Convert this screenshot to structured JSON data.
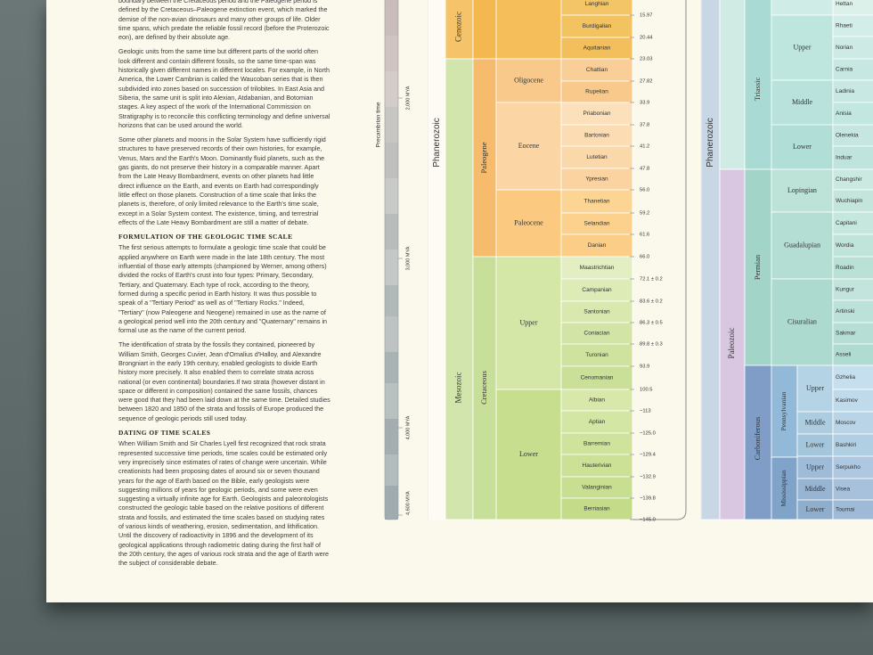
{
  "article": {
    "paragraphs_1": [
      "boundary between the Cretaceous period and the Paleogene period is defined by the Cretaceous–Paleogene extinction event, which marked the demise of the non-avian dinosaurs and many other groups of life. Older time spans, which predate the reliable fossil record (before the Proterozoic eon), are defined by their absolute age.",
      "Geologic units from the same time but different parts of the world often look different and contain different fossils, so the same time-span was historically given different names in different locales. For example, in North America, the Lower Cambrian is called the Waucoban series that is then subdivided into zones based on succession of trilobites. In East Asia and Siberia, the same unit is split into Alexian, Atdabanian, and Botomian stages. A key aspect of the work of the International Commission on Stratigraphy is to reconcile this conflicting terminology and define universal horizons that can be used around the world.",
      "Some other planets and moons in the Solar System have sufficiently rigid structures to have preserved records of their own histories, for example, Venus, Mars and the Earth's Moon. Dominantly fluid planets, such as the gas giants, do not preserve their history in a comparable manner. Apart from the Late Heavy Bombardment, events on other planets had little direct influence on the Earth, and events on Earth had correspondingly little effect on those planets. Construction of a time scale that links the planets is, therefore, of only limited relevance to the Earth's time scale, except in a Solar System context. The existence, timing, and terrestrial effects of the Late Heavy Bombardment are still a matter of debate."
    ],
    "heading_1": "FORMULATION OF THE GEOLOGIC TIME SCALE",
    "paragraphs_2": [
      "The first serious attempts to formulate a geologic time scale that could be applied anywhere on Earth were made in the late 18th century. The most influential of those early attempts (championed by Werner, among others) divided the rocks of Earth's crust into four types: Primary, Secondary, Tertiary, and Quaternary. Each type of rock, according to the theory, formed during a specific period in Earth history. It was thus possible to speak of a \"Tertiary Period\" as well as of \"Tertiary Rocks.\" Indeed, \"Tertiary\" (now Paleogene and Neogene) remained in use as the name of a geological period well into the 20th century and \"Quaternary\" remains in formal use as the name of the current period.",
      "The identification of strata by the fossils they contained, pioneered by William Smith, Georges Cuvier, Jean d'Omalius d'Halloy, and Alexandre Brongniart in the early 19th century, enabled geologists to divide Earth history more precisely. It also enabled them to correlate strata across national (or even continental) boundaries.If two strata (however distant in space or different in composition) contained the same fossils, chances were good that they had been laid down at the same time. Detailed studies between 1820 and 1850 of the strata and fossils of Europe produced the sequence of geologic periods still used today."
    ],
    "heading_2": "DATING OF TIME SCALES",
    "paragraphs_3": [
      "When William Smith and Sir Charles Lyell first recognized that rock strata represented successive time periods, time scales could be estimated only very imprecisely since estimates of rates of change were uncertain. While creationists had been proposing dates of around six or seven thousand years for the age of Earth based on the Bible, early geologists were suggesting millions of years for geologic periods, and some were even suggesting a virtually infinite age for Earth. Geologists and paleontologists constructed the geologic table based on the relative positions of different strata and fossils, and estimated the time scales based on studying rates of various kinds of weathering, erosion, sedimentation, and lithification. Until the discovery of radioactivity in 1896 and the development of its geological applications through radiometric dating during the first half of the 20th century, the ages of various rock strata and the age of Earth were the subject of considerable debate."
    ]
  },
  "precambrian": {
    "label": "Precambrian time",
    "ticks": [
      "2,000 MYA",
      "3,000 MYA",
      "4,000 MYA",
      "4,600 MYA"
    ]
  },
  "chart_left": {
    "eon": [
      {
        "label": "Phanerozoic",
        "color": "#fdfbf3"
      }
    ],
    "eras": [
      {
        "label": "Cenozoic",
        "color": "#f4c36a"
      },
      {
        "label": "Mesozoic",
        "color": "#d2e5ad"
      }
    ],
    "periods": [
      {
        "color": "#f5b850"
      },
      {
        "label": "Paleogene",
        "color": "#f6bb6c"
      },
      {
        "label": "Cretaceous",
        "color": "#c8df9a"
      }
    ],
    "epochs": [
      {
        "color": "#f6be5a"
      },
      {
        "label": "Oligocene",
        "color": "#f8c98b"
      },
      {
        "label": "Eocene",
        "color": "#fbd6a4"
      },
      {
        "label": "Paleocene",
        "color": "#fbca80"
      },
      {
        "label": "Upper",
        "color": "#d4e7a6"
      },
      {
        "label": "Lower",
        "color": "#c6de8e"
      }
    ],
    "stages": [
      {
        "label": "Langhian",
        "color": "#f3c566"
      },
      {
        "label": "Burdigalian",
        "color": "#f3c261"
      },
      {
        "label": "Aquitanian",
        "color": "#f3bf5c"
      },
      {
        "label": "Chattian",
        "color": "#f9cf97"
      },
      {
        "label": "Rupelian",
        "color": "#f9c98c"
      },
      {
        "label": "Priabonian",
        "color": "#fce0bb"
      },
      {
        "label": "Bartonian",
        "color": "#fcdcb2"
      },
      {
        "label": "Lutetian",
        "color": "#fbd8aa"
      },
      {
        "label": "Ypresian",
        "color": "#fbd3a0"
      },
      {
        "label": "Thanetian",
        "color": "#fcd595"
      },
      {
        "label": "Selandian",
        "color": "#fcd18d"
      },
      {
        "label": "Danian",
        "color": "#fbcd86"
      },
      {
        "label": "Maastrichtian",
        "color": "#e3eec2"
      },
      {
        "label": "Campanian",
        "color": "#ddebb7"
      },
      {
        "label": "Santonian",
        "color": "#d8e8ae"
      },
      {
        "label": "Coniacian",
        "color": "#d3e5a6"
      },
      {
        "label": "Turonian",
        "color": "#cfe39f"
      },
      {
        "label": "Cenomanian",
        "color": "#cae098"
      },
      {
        "label": "Albian",
        "color": "#d8e8aa"
      },
      {
        "label": "Aptian",
        "color": "#d4e6a3"
      },
      {
        "label": "Barremian",
        "color": "#d0e39c"
      },
      {
        "label": "Hauterivian",
        "color": "#cce196"
      },
      {
        "label": "Valanginian",
        "color": "#c8de90"
      },
      {
        "label": "Berriasian",
        "color": "#c4dc8a"
      }
    ],
    "ages": [
      "15.97",
      "20.44",
      "23.03",
      "27.82",
      "33.9",
      "37.8",
      "41.2",
      "47.8",
      "56.0",
      "59.2",
      "61.6",
      "66.0",
      "72.1 ± 0.2",
      "83.6 ± 0.2",
      "86.3 ± 0.5",
      "89.8 ± 0.3",
      "93.9",
      "100.5",
      "~113",
      "~125.0",
      "~129.4",
      "~132.9",
      "~139.8",
      "~145.0"
    ]
  },
  "chart_right": {
    "eon": [
      {
        "label": "Phanerozoic",
        "color": "#c9d6e4"
      }
    ],
    "eras": [
      {
        "color": "#d0ebe3"
      },
      {
        "label": "Paleozoic",
        "color": "#d9c7e2"
      }
    ],
    "periods": [
      {
        "label": "Triassic",
        "color": "#a9dad3"
      },
      {
        "label": "Permian",
        "color": "#a2d4c8"
      },
      {
        "label": "Carboniferous",
        "color": "#7f9dc7"
      }
    ],
    "subperiods": [
      {
        "label": "Pennsylvanian",
        "color": "#92b9d8"
      },
      {
        "label": "Mississippian",
        "color": "#7fa3c9"
      }
    ],
    "epochs": [
      {
        "color": "#cfece6"
      },
      {
        "label": "Upper",
        "color": "#bfe5df"
      },
      {
        "label": "Middle",
        "color": "#b8e2db"
      },
      {
        "label": "Lower",
        "color": "#b1dfd7"
      },
      {
        "label": "Lopingian",
        "color": "#bde2d8"
      },
      {
        "label": "Guadalupian",
        "color": "#b4ded3"
      },
      {
        "label": "Cisuralian",
        "color": "#acdace"
      },
      {
        "label": "Upper",
        "color": "#b4d3e5"
      },
      {
        "label": "Middle",
        "color": "#acccdf"
      },
      {
        "label": "Lower",
        "color": "#a4c6da"
      },
      {
        "label": "Upper",
        "color": "#9ebcd8"
      },
      {
        "label": "Middle",
        "color": "#97b5d2"
      },
      {
        "label": "Lower",
        "color": "#8faecc"
      }
    ],
    "stages": [
      {
        "label": "Hettan",
        "color": "#dcf1ea"
      },
      {
        "label": "Rhaeti",
        "color": "#d3ede8"
      },
      {
        "label": "Norian",
        "color": "#cdeae5"
      },
      {
        "label": "Carnia",
        "color": "#c7e8e2"
      },
      {
        "label": "Ladinia",
        "color": "#c8e9e3"
      },
      {
        "label": "Anisia",
        "color": "#c2e6e0"
      },
      {
        "label": "Olenekia",
        "color": "#c6e7e1"
      },
      {
        "label": "Induar",
        "color": "#bfe4de"
      },
      {
        "label": "Changshir",
        "color": "#cae9e1"
      },
      {
        "label": "Wuchiapin",
        "color": "#c3e5dc"
      },
      {
        "label": "Capitani",
        "color": "#c6e7de"
      },
      {
        "label": "Wordia",
        "color": "#c0e4da"
      },
      {
        "label": "Roadin",
        "color": "#bae1d6"
      },
      {
        "label": "Kungur",
        "color": "#c2e4dc"
      },
      {
        "label": "Artinski",
        "color": "#bce1d8"
      },
      {
        "label": "Sakmar",
        "color": "#b6ded4"
      },
      {
        "label": "Asseli",
        "color": "#b0dbd0"
      },
      {
        "label": "Gzhelia",
        "color": "#c6dfee"
      },
      {
        "label": "Kasimov",
        "color": "#bfdaea"
      },
      {
        "label": "Moscov",
        "color": "#b8d4e6"
      },
      {
        "label": "Bashkiri",
        "color": "#b1cfe2"
      },
      {
        "label": "Serpukho",
        "color": "#afc8e2"
      },
      {
        "label": "Visea",
        "color": "#a7c1dc"
      },
      {
        "label": "Tournai",
        "color": "#9fbad6"
      }
    ]
  }
}
